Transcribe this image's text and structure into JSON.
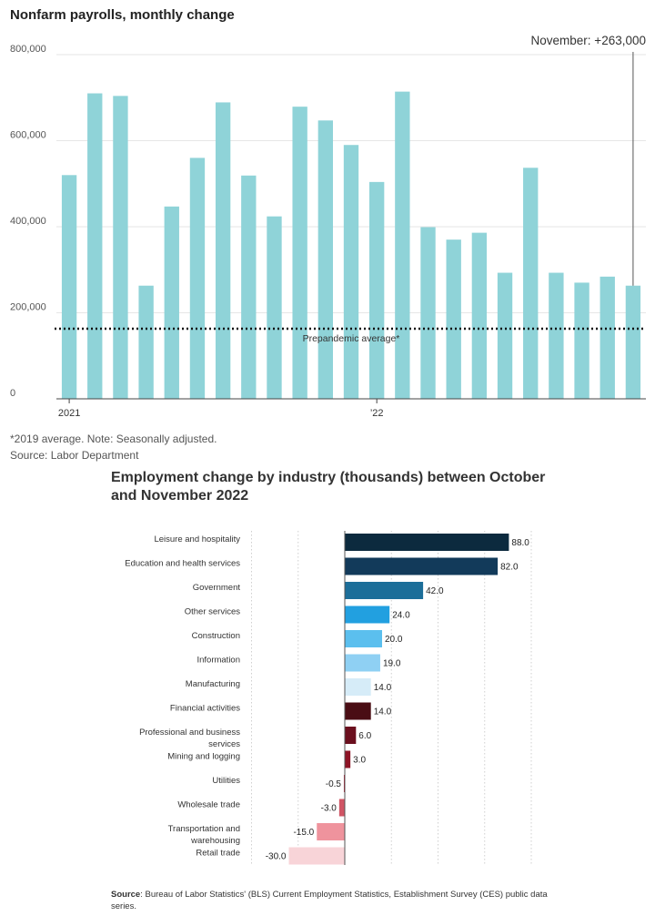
{
  "chart_data": [
    {
      "type": "bar",
      "title": "Nonfarm payrolls, monthly change",
      "x_tick_labels": [
        "2021",
        "’22"
      ],
      "values": [
        520000,
        710000,
        704000,
        263000,
        447000,
        560000,
        689000,
        519000,
        424000,
        679000,
        647000,
        590000,
        504000,
        714000,
        399000,
        370000,
        386000,
        293000,
        537000,
        293000,
        270000,
        284000,
        263000
      ],
      "y_ticks": [
        "800,000",
        "600,000",
        "400,000",
        "200,000",
        "0"
      ],
      "ylim": [
        0,
        800000
      ],
      "reference_line": {
        "label": "Prepandemic average*",
        "value": 163000
      },
      "annotation": "November: +263,000",
      "bar_color": "#8fd3d8",
      "grid": true
    },
    {
      "type": "bar",
      "orientation": "horizontal",
      "title": "Employment change by industry (thousands) between October and November 2022",
      "categories": [
        "Leisure and hospitality",
        "Education and health services",
        "Government",
        "Other services",
        "Construction",
        "Information",
        "Manufacturing",
        "Financial activities",
        "Professional and business services",
        "Mining and logging",
        "Utilities",
        "Wholesale trade",
        "Transportation and warehousing",
        "Retail trade"
      ],
      "category_lines": [
        [
          "Leisure and hospitality"
        ],
        [
          "Education and health services"
        ],
        [
          "Government"
        ],
        [
          "Other services"
        ],
        [
          "Construction"
        ],
        [
          "Information"
        ],
        [
          "Manufacturing"
        ],
        [
          "Financial activities"
        ],
        [
          "Professional and business",
          "services"
        ],
        [
          "Mining and logging"
        ],
        [
          "Utilities"
        ],
        [
          "Wholesale trade"
        ],
        [
          "Transportation and",
          "warehousing"
        ],
        [
          "Retail trade"
        ]
      ],
      "values": [
        88.0,
        82.0,
        42.0,
        24.0,
        20.0,
        19.0,
        14.0,
        14.0,
        6.0,
        3.0,
        -0.5,
        -3.0,
        -15.0,
        -30.0
      ],
      "value_labels": [
        "88.0",
        "82.0",
        "42.0",
        "24.0",
        "20.0",
        "19.0",
        "14.0",
        "14.0",
        "6.0",
        "3.0",
        "-0.5",
        "-3.0",
        "-15.0",
        "-30.0"
      ],
      "colors": [
        "#0c2a3e",
        "#123a5a",
        "#1c6e99",
        "#22a0e0",
        "#5bbfee",
        "#8fd0f3",
        "#d6ecf8",
        "#4a0d14",
        "#6b0f1e",
        "#8e1426",
        "#b31c33",
        "#d05464",
        "#ef939d",
        "#f8d4d8"
      ],
      "xlim": [
        -50,
        100
      ],
      "grid": true
    }
  ],
  "notes": {
    "footnote": "*2019 average. Note: Seasonally adjusted.",
    "source1": "Source: Labor Department",
    "source2_label": "Source",
    "source2_text": ": Bureau of Labor Statistics' (BLS) Current Employment Statistics, Establishment Survey (CES) public data series."
  }
}
